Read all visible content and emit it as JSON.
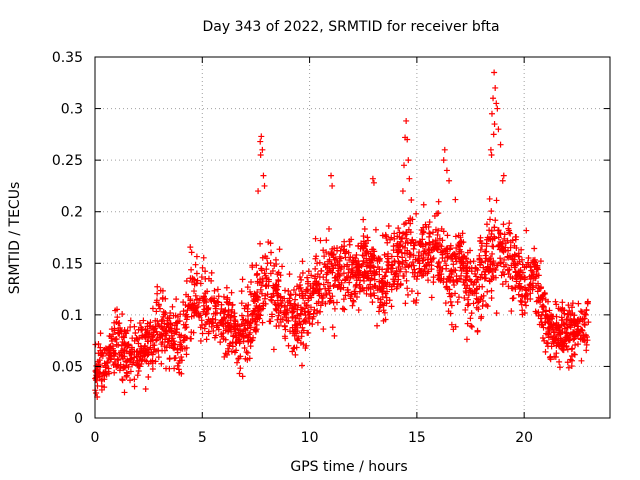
{
  "chart_data": {
    "type": "scatter",
    "title": "Day 343 of 2022, SRMTID for receiver bfta",
    "xlabel": "GPS time / hours",
    "ylabel": "SRMTID / TECUs",
    "xlim": [
      0,
      24
    ],
    "ylim": [
      0,
      0.35
    ],
    "xticks": [
      0,
      5,
      10,
      15,
      20
    ],
    "xtick_labels": [
      "0",
      "5",
      "10",
      "15",
      "20"
    ],
    "yticks": [
      0,
      0.05,
      0.1,
      0.15,
      0.2,
      0.25,
      0.3,
      0.35
    ],
    "ytick_labels": [
      "0",
      "0.05",
      "0.1",
      "0.15",
      "0.2",
      "0.25",
      "0.3",
      "0.35"
    ],
    "grid": true,
    "marker": "+",
    "color": "#ff0000",
    "trend": {
      "x": [
        0,
        0.5,
        1,
        1.5,
        2,
        2.5,
        3,
        3.5,
        4,
        4.5,
        5,
        5.5,
        6,
        6.5,
        7,
        7.5,
        8,
        8.5,
        9,
        9.5,
        10,
        10.5,
        11,
        11.5,
        12,
        12.5,
        13,
        13.5,
        14,
        14.5,
        15,
        15.5,
        16,
        16.5,
        17,
        17.5,
        18,
        18.5,
        19,
        19.5,
        20,
        20.5,
        21,
        21.5,
        22,
        22.5,
        23
      ],
      "y": [
        0.045,
        0.055,
        0.075,
        0.065,
        0.06,
        0.07,
        0.09,
        0.08,
        0.07,
        0.11,
        0.115,
        0.1,
        0.095,
        0.09,
        0.085,
        0.11,
        0.13,
        0.12,
        0.1,
        0.095,
        0.11,
        0.13,
        0.14,
        0.135,
        0.14,
        0.15,
        0.14,
        0.13,
        0.15,
        0.16,
        0.155,
        0.16,
        0.165,
        0.14,
        0.15,
        0.12,
        0.14,
        0.16,
        0.16,
        0.15,
        0.12,
        0.14,
        0.09,
        0.08,
        0.085,
        0.085,
        0.09
      ]
    },
    "spread": {
      "x": [
        0,
        1,
        2,
        3,
        4,
        5,
        6,
        7,
        8,
        9,
        10,
        11,
        12,
        13,
        14,
        15,
        16,
        17,
        18,
        19,
        20,
        21,
        22,
        23
      ],
      "y": [
        0.02,
        0.03,
        0.025,
        0.03,
        0.035,
        0.035,
        0.03,
        0.035,
        0.035,
        0.03,
        0.035,
        0.035,
        0.035,
        0.035,
        0.035,
        0.035,
        0.035,
        0.035,
        0.04,
        0.035,
        0.03,
        0.03,
        0.025,
        0.025
      ]
    },
    "spikes": [
      {
        "x": 7.75,
        "y": 0.273
      },
      {
        "x": 7.7,
        "y": 0.268
      },
      {
        "x": 7.8,
        "y": 0.26
      },
      {
        "x": 7.72,
        "y": 0.255
      },
      {
        "x": 7.85,
        "y": 0.235
      },
      {
        "x": 7.9,
        "y": 0.225
      },
      {
        "x": 7.6,
        "y": 0.22
      },
      {
        "x": 14.5,
        "y": 0.288
      },
      {
        "x": 14.45,
        "y": 0.272
      },
      {
        "x": 14.55,
        "y": 0.27
      },
      {
        "x": 14.6,
        "y": 0.25
      },
      {
        "x": 14.4,
        "y": 0.245
      },
      {
        "x": 14.35,
        "y": 0.22
      },
      {
        "x": 14.65,
        "y": 0.232
      },
      {
        "x": 16.3,
        "y": 0.26
      },
      {
        "x": 16.25,
        "y": 0.25
      },
      {
        "x": 16.4,
        "y": 0.24
      },
      {
        "x": 16.5,
        "y": 0.23
      },
      {
        "x": 18.6,
        "y": 0.335
      },
      {
        "x": 18.65,
        "y": 0.32
      },
      {
        "x": 18.55,
        "y": 0.31
      },
      {
        "x": 18.7,
        "y": 0.305
      },
      {
        "x": 18.75,
        "y": 0.3
      },
      {
        "x": 18.5,
        "y": 0.295
      },
      {
        "x": 18.62,
        "y": 0.285
      },
      {
        "x": 18.58,
        "y": 0.275
      },
      {
        "x": 18.8,
        "y": 0.28
      },
      {
        "x": 18.45,
        "y": 0.26
      },
      {
        "x": 18.9,
        "y": 0.265
      },
      {
        "x": 18.48,
        "y": 0.255
      },
      {
        "x": 19.0,
        "y": 0.23
      },
      {
        "x": 19.05,
        "y": 0.235
      },
      {
        "x": 13.0,
        "y": 0.228
      },
      {
        "x": 12.95,
        "y": 0.232
      },
      {
        "x": 11.0,
        "y": 0.235
      },
      {
        "x": 11.05,
        "y": 0.225
      }
    ],
    "n_points": 2400,
    "seed": 343
  }
}
